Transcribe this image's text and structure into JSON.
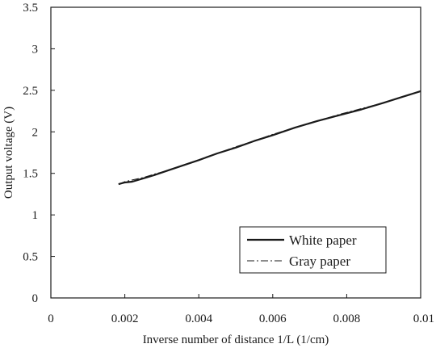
{
  "chart_data": {
    "type": "line",
    "xlabel": "Inverse number of distance 1/L (1/cm)",
    "ylabel": "Output voltage (V)",
    "xlim": [
      0,
      0.01
    ],
    "ylim": [
      0,
      3.5
    ],
    "x_ticks": [
      "0",
      "0.002",
      "0.004",
      "0.006",
      "0.008",
      "0.01"
    ],
    "y_ticks": [
      "0",
      "0.5",
      "1",
      "1.5",
      "2",
      "2.5",
      "3",
      "3.5"
    ],
    "x_tick_values": [
      0,
      0.002,
      0.004,
      0.006,
      0.008,
      0.01
    ],
    "y_tick_values": [
      0,
      0.5,
      1,
      1.5,
      2,
      2.5,
      3,
      3.5
    ],
    "grid": false,
    "legend_position": "bottom-right",
    "series": [
      {
        "name": "White paper",
        "style": "solid",
        "color": "#1a1a1a",
        "x": [
          0.00183,
          0.002,
          0.0022,
          0.0025,
          0.0028,
          0.0032,
          0.0036,
          0.004,
          0.0045,
          0.005,
          0.0055,
          0.006,
          0.0066,
          0.0072,
          0.0078,
          0.0084,
          0.009,
          0.0095,
          0.01
        ],
        "y": [
          1.37,
          1.39,
          1.4,
          1.44,
          1.48,
          1.54,
          1.6,
          1.66,
          1.74,
          1.81,
          1.89,
          1.96,
          2.05,
          2.13,
          2.2,
          2.27,
          2.35,
          2.42,
          2.49
        ]
      },
      {
        "name": "Gray paper",
        "style": "dashdot",
        "color": "#1a1a1a",
        "x": [
          0.00183,
          0.002,
          0.0022,
          0.0025,
          0.0028,
          0.0032,
          0.0036,
          0.004,
          0.0045,
          0.005,
          0.0055,
          0.006,
          0.0066,
          0.0072,
          0.0078,
          0.0084,
          0.009,
          0.0095,
          0.01
        ],
        "y": [
          1.37,
          1.4,
          1.42,
          1.45,
          1.49,
          1.54,
          1.6,
          1.66,
          1.74,
          1.82,
          1.89,
          1.97,
          2.05,
          2.13,
          2.21,
          2.28,
          2.35,
          2.42,
          2.49
        ]
      }
    ]
  }
}
